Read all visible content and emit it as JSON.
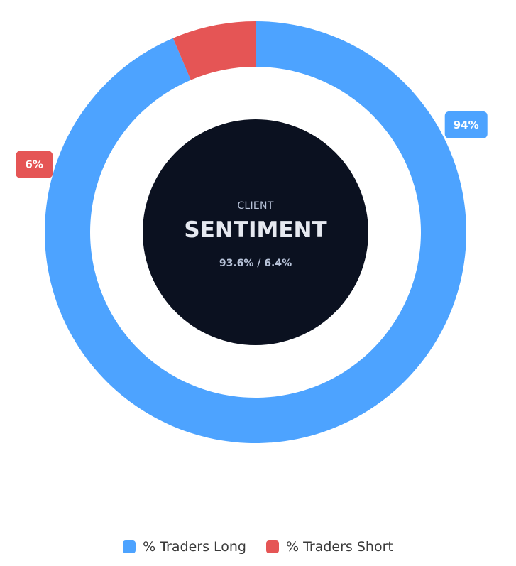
{
  "chart_data": {
    "type": "pie",
    "variant": "donut",
    "categories": [
      "% Traders Long",
      "% Traders Short"
    ],
    "values": [
      93.6,
      6.4
    ],
    "data_labels": [
      "94%",
      "6%"
    ],
    "colors": [
      "#4DA3FF",
      "#E55555"
    ],
    "legend": {
      "placement": "bottom-center",
      "entries": [
        "% Traders Long",
        "% Traders Short"
      ]
    }
  },
  "center": {
    "subtitle": "CLIENT",
    "title": "SENTIMENT",
    "ratio": "93.6% / 6.4%",
    "background_color": "#0B1120",
    "text_color": "#E6E9F0",
    "subtitle_color": "#B8C3D9"
  }
}
